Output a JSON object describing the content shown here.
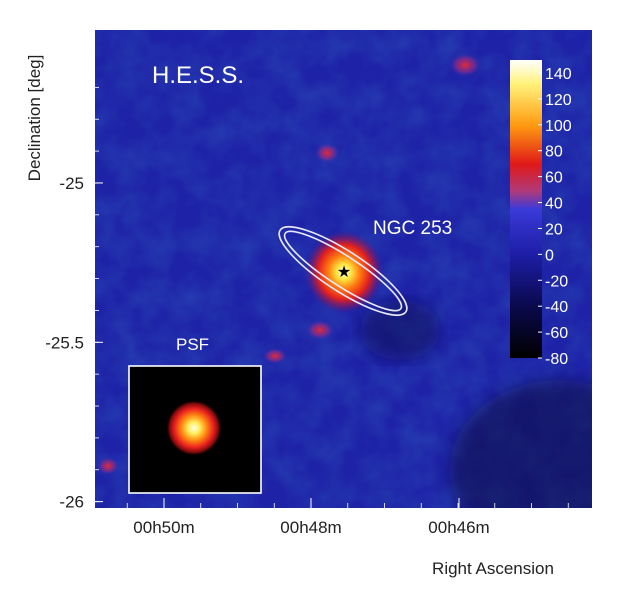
{
  "chart_data": {
    "type": "heatmap",
    "title": "H.E.S.S.",
    "xlabel": "Right Ascension",
    "ylabel": "Declination [deg]",
    "x_ticks": [
      "00h50m",
      "00h48m",
      "00h46m"
    ],
    "y_ticks": [
      {
        "label": "-25",
        "value": -25
      },
      {
        "label": "-25.5",
        "value": -25.5
      },
      {
        "label": "-26",
        "value": -26
      }
    ],
    "ylim": [
      -26.02,
      -24.52
    ],
    "grid": false,
    "colorbar": {
      "labels": [
        "140",
        "120",
        "100",
        "80",
        "60",
        "40",
        "20",
        "0",
        "-20",
        "-40",
        "-60",
        "-80"
      ],
      "range": [
        -80,
        150
      ],
      "position": "top-right-inside"
    },
    "annotations": {
      "source_label": "NGC 253",
      "psf_label": "PSF",
      "source_marker": "star"
    },
    "peak_value": 150
  }
}
